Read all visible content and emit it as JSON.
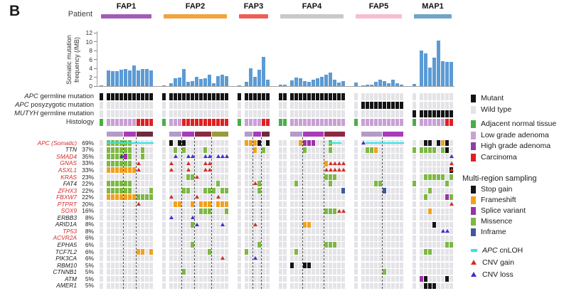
{
  "panel_label": "B",
  "patient_axis_label": "Patient",
  "y_axis": {
    "label_line1": "Somatic mutation",
    "label_line2": "frequency (/MB)",
    "ticks": [
      0,
      2,
      4,
      6,
      8,
      10,
      12
    ],
    "max": 12
  },
  "row_labels": [
    {
      "italic": "APC",
      "rest": " germline mutation"
    },
    {
      "italic": "APC",
      "rest": " posyzygotic mutation"
    },
    {
      "italic": "MUTYH",
      "rest": " germline mutation"
    },
    {
      "italic": "",
      "rest": "Histology"
    }
  ],
  "genes": [
    {
      "name": "APC (Somatic)",
      "pct": "69%",
      "red": true
    },
    {
      "name": "TTN",
      "pct": "37%",
      "red": false
    },
    {
      "name": "SMAD4",
      "pct": "35%",
      "red": true
    },
    {
      "name": "GNAS",
      "pct": "33%",
      "red": true
    },
    {
      "name": "ASXL1",
      "pct": "33%",
      "red": true
    },
    {
      "name": "KRAS",
      "pct": "23%",
      "red": true
    },
    {
      "name": "FAT4",
      "pct": "22%",
      "red": false
    },
    {
      "name": "ZFHX3",
      "pct": "22%",
      "red": true
    },
    {
      "name": "FBXW7",
      "pct": "22%",
      "red": true
    },
    {
      "name": "PTPRT",
      "pct": "20%",
      "red": true
    },
    {
      "name": "SOX9",
      "pct": "16%",
      "red": true
    },
    {
      "name": "ERBB3",
      "pct": "8%",
      "red": false
    },
    {
      "name": "ARID1A",
      "pct": "8%",
      "red": false
    },
    {
      "name": "TP53",
      "pct": "8%",
      "red": true
    },
    {
      "name": "ACVR2A",
      "pct": "6%",
      "red": true
    },
    {
      "name": "EPHA5",
      "pct": "6%",
      "red": false
    },
    {
      "name": "TCF7L2",
      "pct": "6%",
      "red": false
    },
    {
      "name": "PIK3CA",
      "pct": "6%",
      "red": false
    },
    {
      "name": "RBM10",
      "pct": "5%",
      "red": false
    },
    {
      "name": "CTNNB1",
      "pct": "5%",
      "red": false
    },
    {
      "name": "ATM",
      "pct": "5%",
      "red": false
    },
    {
      "name": "AMER1",
      "pct": "5%",
      "red": false
    }
  ],
  "legend_mutation_status": [
    {
      "label": "Mutant",
      "color": "#141414"
    },
    {
      "label": "Wild type",
      "color": "#e4e4e8"
    }
  ],
  "legend_histology": [
    {
      "label": "Adjacent normal tissue",
      "color": "#4aae46"
    },
    {
      "label": "Low grade adenoma",
      "color": "#c9a0d6"
    },
    {
      "label": "High grade adenoma",
      "color": "#8b3fa8"
    },
    {
      "label": "Carcinoma",
      "color": "#e02020"
    }
  ],
  "legend_sampling": {
    "title": "Multi-region sampling",
    "items": [
      {
        "label": "Stop gain",
        "color": "#141414"
      },
      {
        "label": "Frameshift",
        "color": "#f2a020"
      },
      {
        "label": "Splice variant",
        "color": "#9932a8"
      },
      {
        "label": "Missence",
        "color": "#7db843"
      },
      {
        "label": "Inframe",
        "color": "#41589e"
      }
    ]
  },
  "legend_overlays": [
    {
      "label_italic": "APC",
      "label": " cnLOH",
      "color": "#2ee6e6",
      "shape": "dash"
    },
    {
      "label_italic": "",
      "label": "CNV gain",
      "color": "#d62b20",
      "shape": "triangle"
    },
    {
      "label_italic": "",
      "label": "CNV loss",
      "color": "#3c2fd0",
      "shape": "triangle"
    }
  ],
  "chart_data": {
    "type": "oncoprint+bar",
    "bar_color": "#5b9bd5",
    "colors": {
      "wild": "#e4e4e8",
      "missense": "#7db843",
      "frameshift": "#f2a020",
      "stopgain": "#141414",
      "splice": "#9932a8",
      "inframe": "#41589e",
      "cnloh": "#2ee6e6",
      "cnv_gain": "#d62b20",
      "cnv_loss": "#3c2fd0",
      "hist_N": "#4aae46",
      "hist_L": "#c9a0d6",
      "hist_H": "#8b3fa8",
      "hist_C": "#e02020",
      "mutant": "#141414",
      "gene_red": "#d42a2a"
    },
    "cell_codes": {
      ".": "wild type",
      "G": "missense",
      "O": "frameshift",
      "K": "stop gain",
      "P": "splice variant",
      "B": "inframe",
      "c": "APC cnLOH",
      "g": "missense + cnLOH",
      "r": "CNV gain",
      "v": "CNV loss",
      "x": "stop gain + CNV gain",
      "u": "missense + CNV loss",
      "t": "missense + CNV gain"
    },
    "patients": [
      {
        "name": "FAP1",
        "color": "#a35cb5",
        "normals": 1,
        "bars": [
          0.1,
          3.6,
          3.4,
          3.4,
          3.7,
          3.9,
          3.5,
          4.6,
          3.5,
          3.8,
          3.9,
          3.5
        ],
        "apc_germline": "KKKKKKKKKKKK",
        "apc_postzygotic": "............",
        "mutyh_germline": "............",
        "histology": "NLLLLLLLCCCC",
        "lesions": [
          {
            "color": "#b49bc8",
            "span": 4
          },
          {
            "color": "#a83cb8",
            "span": 3
          },
          {
            "color": "#6e2a3e",
            "span": 4
          }
        ],
        "grid": [
          ".ggggggccccc",
          ".GGGGGG..G..",
          ".GGGuPG..G..",
          ".GGGGGG.r...",
          ".OOOOOOOr...",
          "............",
          ".GGGGGG.....",
          ".GGGGGG....G",
          ".OOOOOOOGGGG",
          "........r...",
          "............",
          "............",
          "............",
          "............",
          "............",
          "............",
          "........OO.O",
          "............",
          "............",
          "............",
          "............",
          "............"
        ]
      },
      {
        "name": "FAP2",
        "color": "#f2a33c",
        "normals": 1,
        "bars": [
          0.1,
          0.7,
          1.7,
          2.0,
          3.8,
          1.0,
          1.2,
          2.1,
          1.6,
          1.8,
          2.5,
          0.7,
          2.3,
          2.5,
          2.2
        ],
        "apc_germline": "KKKKKKKKKKKKKKK",
        "apc_postzygotic": "...............",
        "mutyh_germline": "...............",
        "histology": "NLLLCCCCCCCCCCC",
        "lesions": [
          {
            "color": "#b49bc8",
            "span": 3
          },
          {
            "color": "#a83cb8",
            "span": 3
          },
          {
            "color": "#8c2846",
            "span": 4
          },
          {
            "color": "#999a3e",
            "span": 4
          }
        ],
        "grid": [
          ".K.KK..........",
          "..G.G....G.....",
          "..v..vv..vv.vvv",
          ".r...r...rr....",
          ".r...r...rr....",
          ".....GGr.......",
          "............G..",
          "....GG...GGG.GG",
          ".r.....r....r..",
          "..OO..O.OOO.OOO",
          "........GGG...G",
          ".v....v........",
          "......Gv.....v.",
          "...............",
          "...............",
          "......G........",
          "..........G....",
          ".............r.",
          "...............",
          "....G..........",
          "...............",
          "..............."
        ]
      },
      {
        "name": "FAP3",
        "color": "#ed5f55",
        "normals": 1,
        "bars": [
          0.1,
          1.0,
          4.0,
          2.1,
          3.7,
          6.5,
          1.5
        ],
        "apc_germline": "KKKKKKK",
        "apc_postzygotic": ".......",
        "mutyh_germline": ".......",
        "histology": "NLLLLCC",
        "lesions": [
          {
            "color": "#b49bc8",
            "span": 2
          },
          {
            "color": "#a83cb8",
            "span": 2
          },
          {
            "color": "#6e2a3e",
            "span": 2
          }
        ],
        "grid": [
          ".OOOK.K",
          "...O.G.",
          ".......",
          ".......",
          ".......",
          ".......",
          "...rG..",
          "....G..",
          ".......",
          ".......",
          ".......",
          ".......",
          "...r...",
          ".......",
          ".......",
          "....G..",
          ".G.....",
          "...v...",
          ".......",
          ".......",
          ".......",
          "......."
        ]
      },
      {
        "name": "FAP4",
        "color": "#c9c9c9",
        "normals": 2,
        "bars": [
          0.3,
          0.3,
          1.3,
          1.9,
          1.7,
          1.2,
          0.9,
          1.5,
          1.7,
          2.1,
          2.5,
          3.0,
          1.4,
          0.8,
          1.2
        ],
        "apc_germline": "KKKKKKKKKKKKKKK",
        "apc_postzygotic": "...............",
        "mutyh_germline": "...............",
        "histology": "NNLLLLLLLLLLLLL",
        "lesions": [
          {
            "color": "#b49bc8",
            "span": 3
          },
          {
            "color": "#a83cb8",
            "span": 5
          },
          {
            "color": "#8c2846",
            "span": 5
          }
        ],
        "grid": [
          "....OPPP...gcc.",
          ".....G.....G...",
          "...............",
          "..........Orrrr",
          "..........rrrrr",
          "..........GGG..",
          "...G.......G...",
          "..............B",
          "...............",
          "...............",
          "..........GGGrr",
          "...............",
          ".....OO........",
          "...............",
          "...............",
          "..........GGG..",
          "...G...........",
          "...............",
          "..K..KK........",
          "...............",
          "...............",
          "..............."
        ]
      },
      {
        "name": "FAP5",
        "color": "#f7bdd0",
        "normals": 1,
        "bars": [
          0.8,
          0.2,
          0.3,
          0.4,
          0.9,
          1.5,
          1.1,
          0.7,
          1.4,
          0.6,
          0.4
        ],
        "apc_germline": "...........",
        "apc_postzygotic": ".KKKKKKKKKK",
        "mutyh_germline": "...........",
        "histology": "NLLLLLLLLLL",
        "lesions": [
          {
            "color": "#b49bc8",
            "span": 5
          },
          {
            "color": "#a83cb8",
            "span": 5
          }
        ],
        "grid": [
          ".vccccccccc",
          "..GGO......",
          "...........",
          "...........",
          "...........",
          "...........",
          "....GG.....",
          "......B....",
          "...........",
          "...........",
          "...........",
          "...........",
          "...........",
          "...........",
          "...........",
          "...........",
          "...........",
          "...........",
          "...........",
          "......G....",
          "...........",
          "..........."
        ]
      },
      {
        "name": "MAP1",
        "color": "#6fa5c7",
        "normals": 1,
        "bars": [
          0.5,
          8.0,
          7.4,
          4.2,
          6.4,
          10.3,
          5.6,
          5.5,
          5.5
        ],
        "apc_germline": ".........",
        "apc_postzygotic": ".........",
        "mutyh_germline": "KKKKKKKKK",
        "histology": "NLLLLLLCC",
        "lesions": [],
        "grid": [
          "..KK.KOK.",
          "GGGGG.GK.",
          "........v",
          "........r",
          "........x",
          "..GGGGG.G",
          "G......G.",
          "...G.....",
          "..G....PG",
          "........r",
          "...O.....",
          ".........",
          "....K....",
          "......vv.",
          ".........",
          ".......GG",
          "..GG.....",
          ".........",
          ".........",
          ".........",
          ".PK....K.",
          "..KKK...."
        ]
      }
    ]
  }
}
